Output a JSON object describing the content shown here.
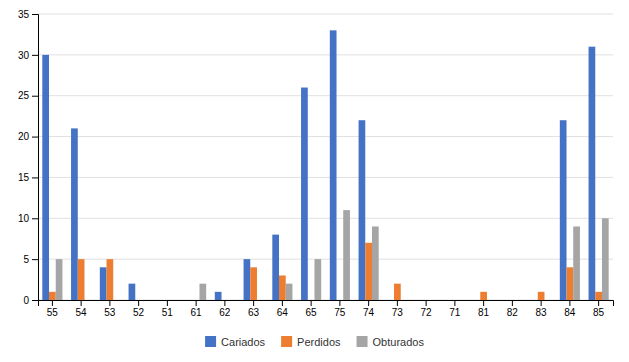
{
  "chart_data": {
    "type": "bar",
    "categories": [
      "55",
      "54",
      "53",
      "52",
      "51",
      "61",
      "62",
      "63",
      "64",
      "65",
      "75",
      "74",
      "73",
      "72",
      "71",
      "81",
      "82",
      "83",
      "84",
      "85"
    ],
    "series": [
      {
        "name": "Cariados",
        "color": "#4472C4",
        "values": [
          30,
          21,
          4,
          2,
          0,
          0,
          1,
          5,
          8,
          26,
          33,
          22,
          0,
          0,
          0,
          0,
          0,
          0,
          22,
          31
        ]
      },
      {
        "name": "Perdidos",
        "color": "#ED7D31",
        "values": [
          1,
          5,
          5,
          0,
          0,
          0,
          0,
          4,
          3,
          0,
          0,
          7,
          2,
          0,
          0,
          1,
          0,
          1,
          4,
          1
        ]
      },
      {
        "name": "Obturados",
        "color": "#A5A5A5",
        "values": [
          5,
          0,
          0,
          0,
          0,
          2,
          0,
          0,
          2,
          5,
          11,
          9,
          0,
          0,
          0,
          0,
          0,
          0,
          9,
          10
        ]
      }
    ],
    "ylim": [
      0,
      35
    ],
    "yticks": [
      0,
      5,
      10,
      15,
      20,
      25,
      30,
      35
    ],
    "grid": true,
    "legend": "bottom"
  }
}
